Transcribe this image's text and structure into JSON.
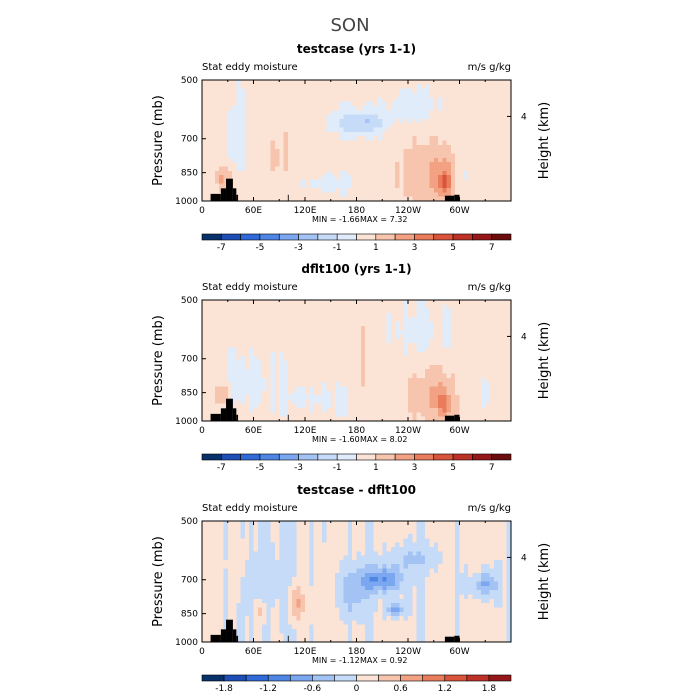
{
  "figure": {
    "title": "SON"
  },
  "chart_data": [
    {
      "type": "heatmap",
      "title": "testcase (yrs 1-1)",
      "left_string": "Stat eddy moisture",
      "right_string": "m/s g/kg",
      "xlabel": "",
      "ylabel": "Pressure (mb)",
      "ylabel_right": "Height (km)",
      "x_ticks": [
        "0",
        "60E",
        "120E",
        "180",
        "120W",
        "60W"
      ],
      "x_tick_lon": [
        0,
        60,
        120,
        180,
        240,
        300
      ],
      "xlim": [
        0,
        360
      ],
      "y_ticks": [
        "500",
        "700",
        "850",
        "1000"
      ],
      "y_tick_p": [
        500,
        700,
        850,
        1000
      ],
      "ylim": [
        1000,
        500
      ],
      "right_ticks": [
        "4"
      ],
      "right_tick_p": [
        616
      ],
      "min_text": "MIN =   -1.66",
      "max_text": "MAX =    7.32",
      "colorbar_labels": [
        "-7",
        "-5",
        "-3",
        "-1",
        "1",
        "3",
        "5",
        "7"
      ],
      "levels": [
        -8,
        -7,
        -6,
        -5,
        -4,
        -3,
        -2,
        -1,
        0,
        1,
        2,
        3,
        4,
        5,
        6,
        7,
        8
      ],
      "colors": [
        "#08306b",
        "#1c4eb5",
        "#2f6ad8",
        "#4f86e6",
        "#7aa7ef",
        "#a3c3f4",
        "#c6dbf8",
        "#e1ecfb",
        "#fbe3d6",
        "#f7c4ad",
        "#f2a283",
        "#e97c5a",
        "#d9543a",
        "#bd3127",
        "#96171a",
        "#6b0d0d"
      ],
      "features": [
        {
          "lon": 185,
          "p": 640,
          "rl": 28,
          "rp": 45,
          "v": -2.5
        },
        {
          "lon": 245,
          "p": 580,
          "rl": 30,
          "rp": 60,
          "v": -1.2
        },
        {
          "lon": 40,
          "p": 700,
          "rl": 12,
          "rp": 180,
          "v": -0.8
        },
        {
          "lon": 130,
          "p": 900,
          "rl": 40,
          "rp": 60,
          "v": -0.8
        },
        {
          "lon": 305,
          "p": 860,
          "rl": 18,
          "rp": 60,
          "v": -0.8
        },
        {
          "lon": 100,
          "p": 800,
          "rl": 35,
          "rp": 200,
          "v": 0.5
        },
        {
          "lon": 270,
          "p": 860,
          "rl": 35,
          "rp": 150,
          "v": 1.8
        },
        {
          "lon": 283,
          "p": 900,
          "rl": 8,
          "rp": 80,
          "v": 2.5
        },
        {
          "lon": 25,
          "p": 880,
          "rl": 12,
          "rp": 60,
          "v": 1.8
        }
      ],
      "base_value": 0.4,
      "terrain": [
        {
          "lon0": 10,
          "lon1": 22,
          "p_top": 960
        },
        {
          "lon0": 22,
          "lon1": 28,
          "p_top": 930
        },
        {
          "lon0": 28,
          "lon1": 36,
          "p_top": 880
        },
        {
          "lon0": 36,
          "lon1": 40,
          "p_top": 930
        },
        {
          "lon0": 40,
          "lon1": 42,
          "p_top": 965
        },
        {
          "lon0": 100,
          "lon1": 101,
          "p_top": 965
        },
        {
          "lon0": 283,
          "lon1": 294,
          "p_top": 970
        },
        {
          "lon0": 294,
          "lon1": 300,
          "p_top": 965
        }
      ]
    },
    {
      "type": "heatmap",
      "title": "dflt100 (yrs 1-1)",
      "left_string": "Stat eddy moisture",
      "right_string": "m/s g/kg",
      "xlabel": "",
      "ylabel": "Pressure (mb)",
      "ylabel_right": "Height (km)",
      "x_ticks": [
        "0",
        "60E",
        "120E",
        "180",
        "120W",
        "60W"
      ],
      "x_tick_lon": [
        0,
        60,
        120,
        180,
        240,
        300
      ],
      "xlim": [
        0,
        360
      ],
      "y_ticks": [
        "500",
        "700",
        "850",
        "1000"
      ],
      "y_tick_p": [
        500,
        700,
        850,
        1000
      ],
      "ylim": [
        1000,
        500
      ],
      "right_ticks": [
        "4"
      ],
      "right_tick_p": [
        616
      ],
      "min_text": "MIN =   -1.60",
      "max_text": "MAX =    8.02",
      "colorbar_labels": [
        "-7",
        "-5",
        "-3",
        "-1",
        "1",
        "3",
        "5",
        "7"
      ],
      "levels": [
        -8,
        -7,
        -6,
        -5,
        -4,
        -3,
        -2,
        -1,
        0,
        1,
        2,
        3,
        4,
        5,
        6,
        7,
        8
      ],
      "colors": [
        "#08306b",
        "#1c4eb5",
        "#2f6ad8",
        "#4f86e6",
        "#7aa7ef",
        "#a3c3f4",
        "#c6dbf8",
        "#e1ecfb",
        "#fbe3d6",
        "#f7c4ad",
        "#f2a283",
        "#e97c5a",
        "#d9543a",
        "#bd3127",
        "#96171a",
        "#6b0d0d"
      ],
      "features": [
        {
          "lon": 250,
          "p": 600,
          "rl": 40,
          "rp": 90,
          "v": -0.8
        },
        {
          "lon": 60,
          "p": 800,
          "rl": 30,
          "rp": 150,
          "v": -0.8
        },
        {
          "lon": 140,
          "p": 880,
          "rl": 40,
          "rp": 80,
          "v": -0.8
        },
        {
          "lon": 310,
          "p": 850,
          "rl": 25,
          "rp": 80,
          "v": -0.6
        },
        {
          "lon": 190,
          "p": 700,
          "rl": 30,
          "rp": 200,
          "v": 0.6
        },
        {
          "lon": 272,
          "p": 870,
          "rl": 30,
          "rp": 130,
          "v": 1.8
        },
        {
          "lon": 283,
          "p": 910,
          "rl": 6,
          "rp": 70,
          "v": 2.5
        },
        {
          "lon": 22,
          "p": 860,
          "rl": 10,
          "rp": 60,
          "v": 1.5
        }
      ],
      "base_value": 0.4,
      "terrain": [
        {
          "lon0": 10,
          "lon1": 22,
          "p_top": 960
        },
        {
          "lon0": 22,
          "lon1": 28,
          "p_top": 930
        },
        {
          "lon0": 28,
          "lon1": 36,
          "p_top": 880
        },
        {
          "lon0": 36,
          "lon1": 40,
          "p_top": 930
        },
        {
          "lon0": 40,
          "lon1": 42,
          "p_top": 965
        },
        {
          "lon0": 100,
          "lon1": 101,
          "p_top": 965
        },
        {
          "lon0": 283,
          "lon1": 294,
          "p_top": 970
        },
        {
          "lon0": 294,
          "lon1": 300,
          "p_top": 965
        }
      ]
    },
    {
      "type": "heatmap",
      "title": "testcase - dflt100",
      "left_string": "Stat eddy moisture",
      "right_string": "m/s g/kg",
      "xlabel": "",
      "ylabel": "Pressure (mb)",
      "ylabel_right": "Height (km)",
      "x_ticks": [
        "0",
        "60E",
        "120E",
        "180",
        "120W",
        "60W"
      ],
      "x_tick_lon": [
        0,
        60,
        120,
        180,
        240,
        300
      ],
      "xlim": [
        0,
        360
      ],
      "y_ticks": [
        "500",
        "700",
        "850",
        "1000"
      ],
      "y_tick_p": [
        500,
        700,
        850,
        1000
      ],
      "ylim": [
        1000,
        500
      ],
      "right_ticks": [
        "4"
      ],
      "right_tick_p": [
        616
      ],
      "min_text": "MIN =   -1.12",
      "max_text": "MAX =    0.92",
      "colorbar_labels": [
        "-1.8",
        "-1.2",
        "-0.6",
        "0",
        "0.6",
        "1.2",
        "1.8"
      ],
      "levels": [
        -2.1,
        -1.8,
        -1.5,
        -1.2,
        -0.9,
        -0.6,
        -0.3,
        0,
        0.3,
        0.6,
        0.9,
        1.2,
        1.5,
        1.8,
        2.1
      ],
      "colors": [
        "#08306b",
        "#1c4eb5",
        "#2f6ad8",
        "#4f86e6",
        "#7aa7ef",
        "#a3c3f4",
        "#c6dbf8",
        "#fbe3d6",
        "#f7c4ad",
        "#f2a283",
        "#e97c5a",
        "#d9543a",
        "#bd3127",
        "#96171a"
      ],
      "features": [
        {
          "lon": 210,
          "p": 700,
          "rl": 25,
          "rp": 50,
          "v": -1.0
        },
        {
          "lon": 225,
          "p": 830,
          "rl": 10,
          "rp": 30,
          "v": -1.0
        },
        {
          "lon": 175,
          "p": 760,
          "rl": 20,
          "rp": 100,
          "v": -0.5
        },
        {
          "lon": 330,
          "p": 720,
          "rl": 15,
          "rp": 50,
          "v": -0.7
        },
        {
          "lon": 245,
          "p": 620,
          "rl": 30,
          "rp": 40,
          "v": -0.4
        },
        {
          "lon": 75,
          "p": 700,
          "rl": 25,
          "rp": 200,
          "v": -0.25
        },
        {
          "lon": 110,
          "p": 800,
          "rl": 8,
          "rp": 80,
          "v": 0.6
        },
        {
          "lon": 70,
          "p": 840,
          "rl": 6,
          "rp": 50,
          "v": 0.5
        },
        {
          "lon": 40,
          "p": 650,
          "rl": 10,
          "rp": 150,
          "v": 0.2
        },
        {
          "lon": 145,
          "p": 800,
          "rl": 12,
          "rp": 200,
          "v": 0.2
        }
      ],
      "base_value": 0.05,
      "terrain": [
        {
          "lon0": 10,
          "lon1": 22,
          "p_top": 960
        },
        {
          "lon0": 22,
          "lon1": 28,
          "p_top": 930
        },
        {
          "lon0": 28,
          "lon1": 36,
          "p_top": 880
        },
        {
          "lon0": 36,
          "lon1": 40,
          "p_top": 930
        },
        {
          "lon0": 40,
          "lon1": 42,
          "p_top": 965
        },
        {
          "lon0": 100,
          "lon1": 101,
          "p_top": 965
        },
        {
          "lon0": 283,
          "lon1": 294,
          "p_top": 970
        },
        {
          "lon0": 294,
          "lon1": 300,
          "p_top": 965
        }
      ]
    }
  ]
}
